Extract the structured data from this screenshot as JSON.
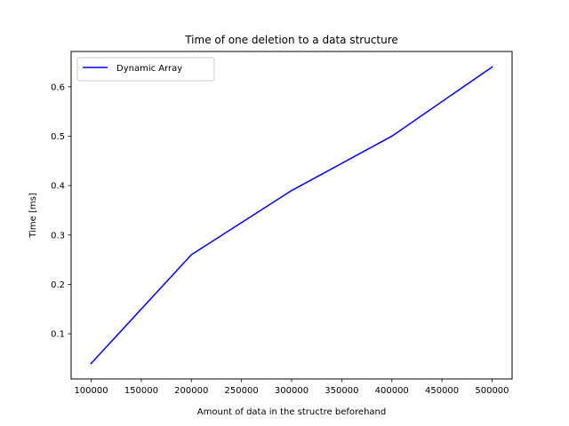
{
  "chart_data": {
    "type": "line",
    "title": "Time of one deletion to a data structure",
    "xlabel": "Amount of data in the structre beforehand",
    "ylabel": "Time [ms]",
    "xlim": [
      80000,
      520000
    ],
    "ylim": [
      0.0085,
      0.6715
    ],
    "x_ticks": [
      100000,
      150000,
      200000,
      250000,
      300000,
      350000,
      400000,
      450000,
      500000
    ],
    "x_tick_labels": [
      "100000",
      "150000",
      "200000",
      "250000",
      "300000",
      "350000",
      "400000",
      "450000",
      "500000"
    ],
    "y_ticks": [
      0.1,
      0.2,
      0.3,
      0.4,
      0.5,
      0.6
    ],
    "y_tick_labels": [
      "0.1",
      "0.2",
      "0.3",
      "0.4",
      "0.5",
      "0.6"
    ],
    "grid": false,
    "legend_position": "top-left",
    "x": [
      100000,
      200000,
      300000,
      400000,
      500000
    ],
    "series": [
      {
        "name": "Dynamic Array",
        "color": "#0000ff",
        "values": [
          0.04,
          0.26,
          0.39,
          0.5,
          0.64
        ]
      }
    ]
  }
}
